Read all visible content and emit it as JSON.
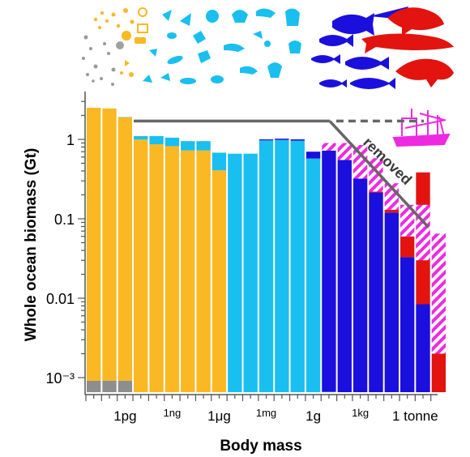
{
  "chart_data": {
    "type": "bar",
    "ylabel": "Whole ocean biomass (Gt)",
    "xlabel": "Body mass",
    "yscale": "log",
    "ylim": [
      0.0007,
      3.0
    ],
    "yticks": [
      {
        "value": 1,
        "label": "1"
      },
      {
        "value": 0.1,
        "label": "0.1"
      },
      {
        "value": 0.01,
        "label": "0.01"
      },
      {
        "value": 0.001,
        "label": "10⁻³"
      }
    ],
    "xticks": [
      {
        "bin": 2,
        "label": "1pg",
        "small": false
      },
      {
        "bin": 5,
        "label": "1ng",
        "small": true
      },
      {
        "bin": 8,
        "label": "1μg",
        "small": false
      },
      {
        "bin": 11,
        "label": "1mg",
        "small": true
      },
      {
        "bin": 14,
        "label": "1g",
        "small": false
      },
      {
        "bin": 17,
        "label": "1kg",
        "small": true
      },
      {
        "bin": 20.5,
        "label": "1 tonne",
        "small": false
      }
    ],
    "colors": {
      "prokaryotes": "#8e8e8e",
      "phytoplankton": "#f9b824",
      "zooplankton": "#19bff0",
      "fish": "#1a0fdc",
      "mammals": "#e3130f",
      "removed": "#ee2ae0",
      "trend": "#666666"
    },
    "bins": [
      {
        "total": 2.5,
        "removed": 0,
        "prokaryotes": 0.1,
        "phytoplankton": 2.4,
        "zooplankton": 0,
        "fish": 0,
        "mammals": 0
      },
      {
        "total": 2.45,
        "removed": 0,
        "prokaryotes": 0.1,
        "phytoplankton": 2.35,
        "zooplankton": 0,
        "fish": 0,
        "mammals": 0
      },
      {
        "total": 1.9,
        "removed": 0,
        "prokaryotes": 0.08,
        "phytoplankton": 1.82,
        "zooplankton": 0.002,
        "fish": 0,
        "mammals": 0
      },
      {
        "total": 1.1,
        "removed": 0,
        "prokaryotes": 0,
        "phytoplankton": 1.085,
        "zooplankton": 0.015,
        "fish": 0,
        "mammals": 0
      },
      {
        "total": 1.1,
        "removed": 0,
        "prokaryotes": 0,
        "phytoplankton": 1.065,
        "zooplankton": 0.035,
        "fish": 0,
        "mammals": 0
      },
      {
        "total": 1.05,
        "removed": 0,
        "prokaryotes": 0,
        "phytoplankton": 1.015,
        "zooplankton": 0.035,
        "fish": 0,
        "mammals": 0
      },
      {
        "total": 0.95,
        "removed": 0,
        "prokaryotes": 0,
        "phytoplankton": 0.915,
        "zooplankton": 0.035,
        "fish": 0,
        "mammals": 0
      },
      {
        "total": 0.95,
        "removed": 0,
        "prokaryotes": 0,
        "phytoplankton": 0.915,
        "zooplankton": 0.035,
        "fish": 0,
        "mammals": 0
      },
      {
        "total": 0.68,
        "removed": 0,
        "prokaryotes": 0,
        "phytoplankton": 0.63,
        "zooplankton": 0.05,
        "fish": 0,
        "mammals": 0
      },
      {
        "total": 0.66,
        "removed": 0,
        "prokaryotes": 0,
        "phytoplankton": 0,
        "zooplankton": 0.66,
        "fish": 0,
        "mammals": 0
      },
      {
        "total": 0.66,
        "removed": 0,
        "prokaryotes": 0,
        "phytoplankton": 0,
        "zooplankton": 0.66,
        "fish": 0,
        "mammals": 0
      },
      {
        "total": 1.0,
        "removed": 0,
        "prokaryotes": 0,
        "phytoplankton": 0,
        "zooplankton": 0.996,
        "fish": 0.004,
        "mammals": 0
      },
      {
        "total": 1.02,
        "removed": 0,
        "prokaryotes": 0,
        "phytoplankton": 0,
        "zooplankton": 1.015,
        "fish": 0.005,
        "mammals": 0
      },
      {
        "total": 1.0,
        "removed": 0,
        "prokaryotes": 0,
        "phytoplankton": 0,
        "zooplankton": 0.995,
        "fish": 0.005,
        "mammals": 0
      },
      {
        "total": 0.7,
        "removed": 0,
        "prokaryotes": 0,
        "phytoplankton": 0,
        "zooplankton": 0.68,
        "fish": 0.02,
        "mammals": 0
      },
      {
        "total": 0.9,
        "removed": 0.18,
        "prokaryotes": 0,
        "phytoplankton": 0,
        "zooplankton": 0.001,
        "fish": 0.72,
        "mammals": 0
      },
      {
        "total": 0.9,
        "removed": 0.35,
        "prokaryotes": 0,
        "phytoplankton": 0,
        "zooplankton": 0,
        "fish": 0.55,
        "mammals": 0
      },
      {
        "total": 0.85,
        "removed": 0.53,
        "prokaryotes": 0,
        "phytoplankton": 0,
        "zooplankton": 0,
        "fish": 0.32,
        "mammals": 0
      },
      {
        "total": 0.58,
        "removed": 0.36,
        "prokaryotes": 0,
        "phytoplankton": 0,
        "zooplankton": 0,
        "fish": 0.219,
        "mammals": 0.001
      },
      {
        "total": 0.28,
        "removed": 0.15,
        "prokaryotes": 0,
        "phytoplankton": 0,
        "zooplankton": 0,
        "fish": 0.128,
        "mammals": 0.002
      },
      {
        "total": 0.15,
        "removed": 0.09,
        "prokaryotes": 0,
        "phytoplankton": 0,
        "zooplankton": 0,
        "fish": 0.052,
        "mammals": 0.008
      },
      {
        "total": 0.15,
        "removed": 0.12,
        "prokaryotes": 0,
        "phytoplankton": 0,
        "zooplankton": 0,
        "fish": 0.02,
        "mammals": 0.03
      },
      {
        "total": 0.065,
        "removed": 0.063,
        "prokaryotes": 0,
        "phytoplankton": 0,
        "zooplankton": 0,
        "fish": 0,
        "mammals": 0.002
      }
    ],
    "trend_line": {
      "solid_flat": {
        "from_bin": 3,
        "to_bin": 15.5,
        "value": 1.7
      },
      "dashed_flat": {
        "from_bin": 15.5,
        "to_bin": 21.5,
        "value": 1.7
      },
      "slope": {
        "from_bin": 15.5,
        "to_bin": 21.8,
        "from_value": 1.7,
        "to_value": 0.078
      }
    },
    "annotations": [
      "removed"
    ]
  },
  "icons": {
    "phytoplankton": "phytoplankton-icons",
    "zooplankton": "zooplankton-icons",
    "fish": "fish-icons",
    "mammals": "marine-mammal-icons",
    "fishing_vessel": "fishing-boat-icon"
  }
}
